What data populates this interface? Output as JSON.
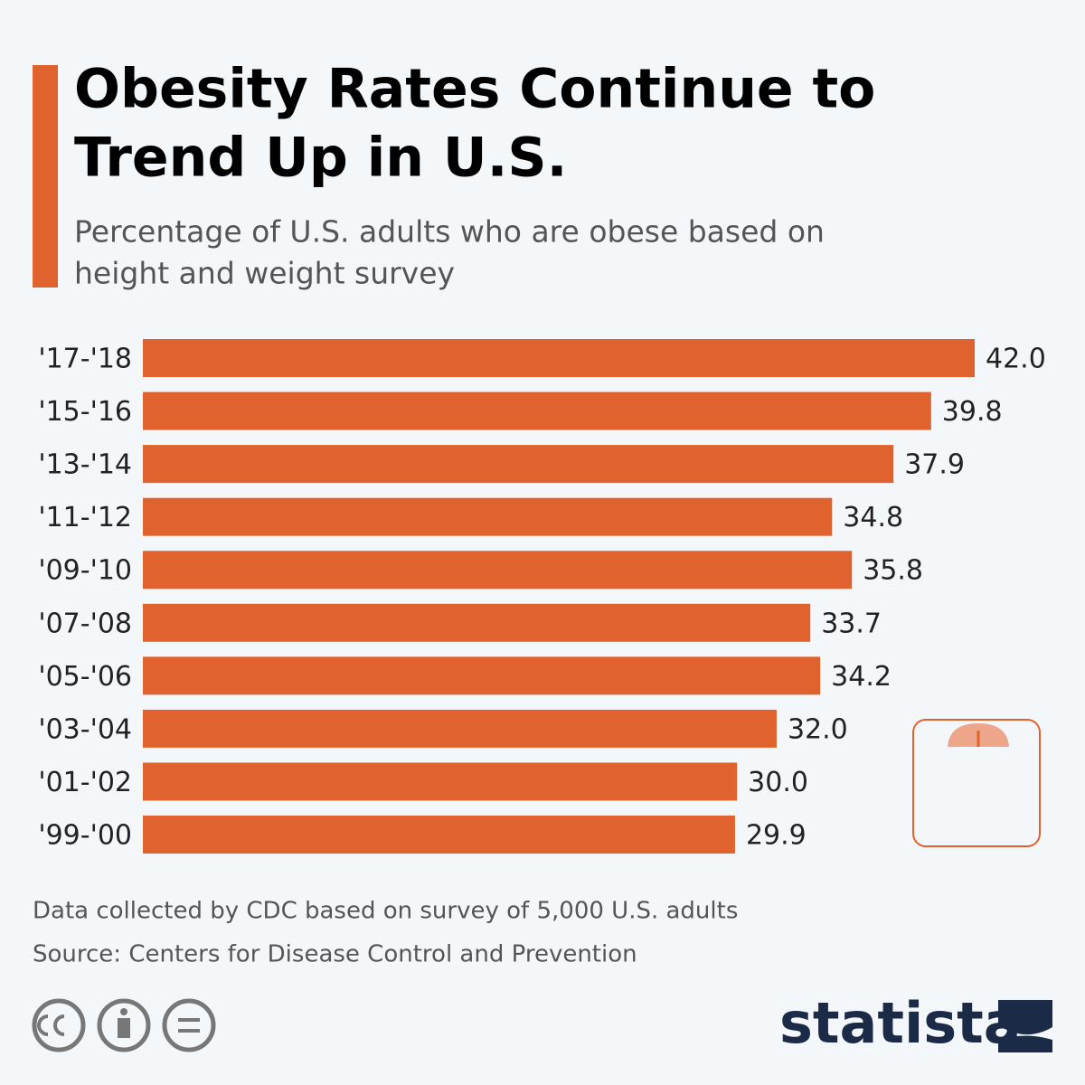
{
  "chart_data": {
    "type": "bar",
    "orientation": "horizontal",
    "title": [
      "Obesity Rates Continue to",
      "Trend Up in U.S."
    ],
    "subtitle": [
      "Percentage of U.S. adults who are obese based on",
      "height and weight survey"
    ],
    "categories": [
      "'17-'18",
      "'15-'16",
      "'13-'14",
      "'11-'12",
      "'09-'10",
      "'07-'08",
      "'05-'06",
      "'03-'04",
      "'01-'02",
      "'99-'00"
    ],
    "values": [
      42.0,
      39.8,
      37.9,
      34.8,
      35.8,
      33.7,
      34.2,
      32.0,
      30.0,
      29.9
    ],
    "value_labels": [
      "42.0",
      "39.8",
      "37.9",
      "34.8",
      "35.8",
      "33.7",
      "34.2",
      "32.0",
      "30.0",
      "29.9"
    ],
    "color": "#e0622f",
    "notes": [
      "Data collected by CDC based on survey of 5,000 U.S. adults",
      "Source: Centers for Disease Control and Prevention"
    ],
    "brand": "statista"
  }
}
